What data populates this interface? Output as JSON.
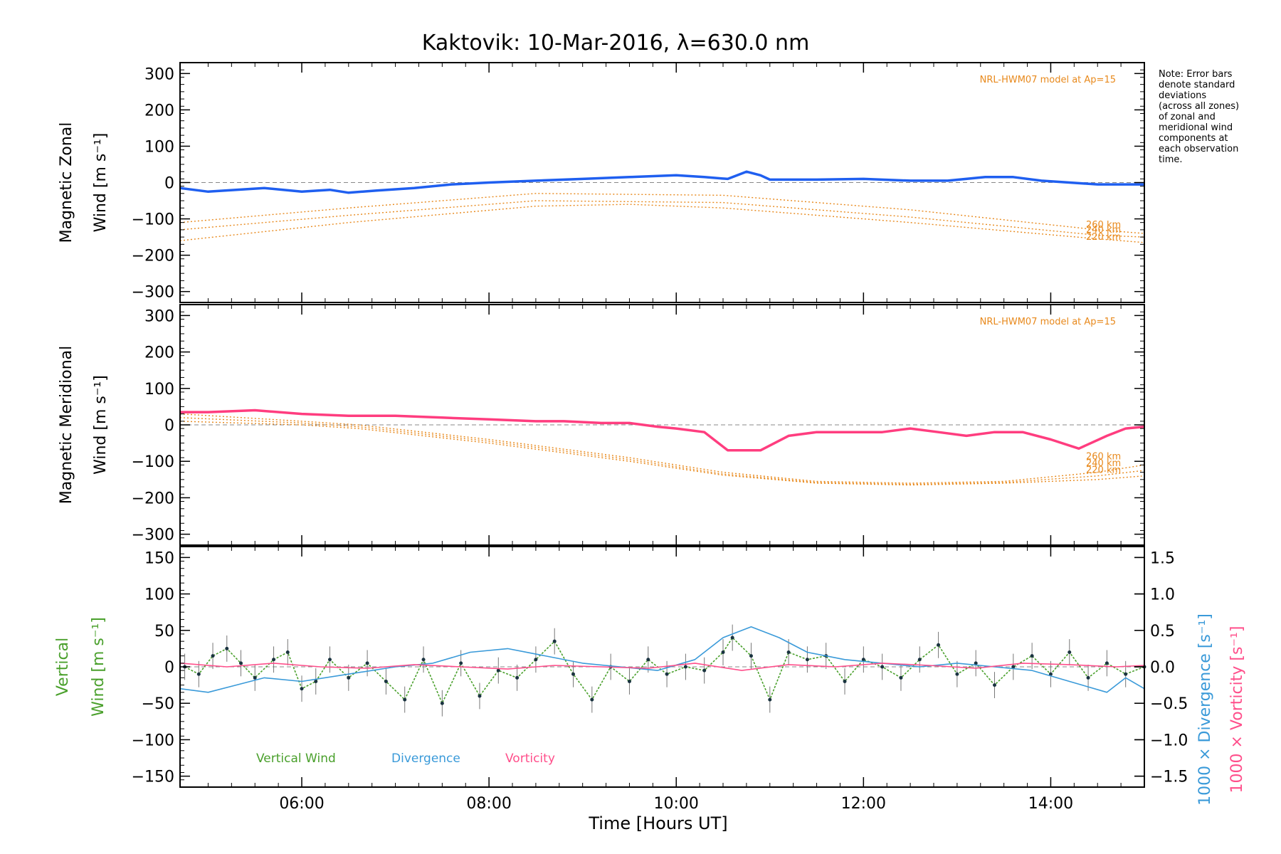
{
  "figure": {
    "title": "Kaktovik: 10-Mar-2016, λ=630.0 nm",
    "xlabel": "Time [Hours UT]",
    "note_lines": [
      "Note: Error bars",
      "denote standard",
      "deviations",
      "(across all zones)",
      "of zonal and",
      "meridional wind",
      "components at",
      "each observation",
      "time."
    ]
  },
  "colors": {
    "zonal_line": "#1f5ff0",
    "meridional_line": "#ff3d7f",
    "vertical": "#4aa02c",
    "divergence": "#3a9ad9",
    "vorticity": "#ff4f8b",
    "model": "#e8891c",
    "scatter": "#a59ee0"
  },
  "chart_data": [
    {
      "type": "line",
      "panel": "zonal",
      "ylabel_lines": [
        "Magnetic Zonal",
        "Wind [m s⁻¹]"
      ],
      "ylim": [
        -330,
        330
      ],
      "yticks": [
        300,
        200,
        100,
        0,
        -100,
        -200,
        -300
      ],
      "xlim": [
        4.7,
        15.0
      ],
      "xticks": [
        "06:00",
        "08:00",
        "10:00",
        "12:00",
        "14:00"
      ],
      "xtick_values": [
        6,
        8,
        10,
        12,
        14
      ],
      "model_label": "NRL-HWM07 model at Ap=15",
      "model_curves": [
        {
          "name": "260 km",
          "x": [
            4.7,
            6.5,
            8.5,
            10.5,
            12.5,
            14.5,
            15.0
          ],
          "y": [
            -110,
            -70,
            -30,
            -35,
            -75,
            -130,
            -140
          ]
        },
        {
          "name": "240 km",
          "x": [
            4.7,
            6.5,
            8.5,
            10.5,
            12.5,
            14.5,
            15.0
          ],
          "y": [
            -130,
            -90,
            -50,
            -55,
            -95,
            -145,
            -150
          ]
        },
        {
          "name": "220 km",
          "x": [
            4.7,
            6.5,
            8.5,
            9.5,
            10.5,
            12.5,
            14.5,
            15.0
          ],
          "y": [
            -160,
            -110,
            -65,
            -60,
            -70,
            -110,
            -155,
            -165
          ]
        }
      ],
      "series": [
        {
          "name": "",
          "x": [
            4.7,
            5.0,
            5.3,
            5.6,
            6.0,
            6.3,
            6.5,
            6.8,
            7.2,
            7.6,
            8.0,
            8.5,
            9.0,
            9.5,
            10.0,
            10.3,
            10.55,
            10.75,
            10.9,
            11.0,
            11.5,
            12.0,
            12.5,
            12.9,
            13.3,
            13.6,
            13.9,
            14.2,
            14.5,
            14.8,
            15.0
          ],
          "y": [
            -15,
            -25,
            -20,
            -15,
            -25,
            -20,
            -28,
            -22,
            -15,
            -5,
            0,
            5,
            10,
            15,
            20,
            15,
            10,
            30,
            20,
            8,
            8,
            10,
            5,
            5,
            15,
            15,
            5,
            0,
            -5,
            -5,
            -5
          ]
        }
      ]
    },
    {
      "type": "line",
      "panel": "meridional",
      "ylabel_lines": [
        "Magnetic Meridional",
        "Wind [m s⁻¹]"
      ],
      "ylim": [
        -330,
        330
      ],
      "yticks": [
        300,
        200,
        100,
        0,
        -100,
        -200,
        -300
      ],
      "xlim": [
        4.7,
        15.0
      ],
      "xticks": [
        "06:00",
        "08:00",
        "10:00",
        "12:00",
        "14:00"
      ],
      "xtick_values": [
        6,
        8,
        10,
        12,
        14
      ],
      "model_label": "NRL-HWM07 model at Ap=15",
      "model_curves": [
        {
          "name": "260 km",
          "x": [
            4.7,
            6.0,
            6.6,
            8.0,
            9.5,
            10.5,
            11.5,
            12.5,
            13.5,
            14.5,
            15.0
          ],
          "y": [
            30,
            10,
            0,
            -40,
            -90,
            -130,
            -155,
            -160,
            -155,
            -130,
            -110
          ]
        },
        {
          "name": "240 km",
          "x": [
            4.7,
            6.0,
            6.6,
            8.0,
            9.5,
            10.5,
            11.5,
            12.5,
            13.5,
            14.5,
            15.0
          ],
          "y": [
            20,
            5,
            -5,
            -45,
            -95,
            -135,
            -158,
            -163,
            -158,
            -140,
            -125
          ]
        },
        {
          "name": "220 km",
          "x": [
            4.7,
            6.0,
            6.6,
            8.0,
            9.5,
            10.5,
            11.5,
            12.5,
            13.5,
            14.5,
            15.0
          ],
          "y": [
            10,
            0,
            -10,
            -50,
            -100,
            -138,
            -160,
            -165,
            -160,
            -150,
            -140
          ]
        }
      ],
      "series": [
        {
          "name": "",
          "x": [
            4.7,
            5.0,
            5.5,
            6.0,
            6.5,
            7.0,
            7.5,
            8.0,
            8.5,
            8.8,
            9.2,
            9.5,
            9.8,
            10.0,
            10.3,
            10.55,
            10.9,
            11.2,
            11.5,
            11.8,
            12.2,
            12.5,
            12.8,
            13.1,
            13.4,
            13.7,
            14.0,
            14.3,
            14.6,
            14.8,
            15.0
          ],
          "y": [
            35,
            35,
            40,
            30,
            25,
            25,
            20,
            15,
            10,
            10,
            5,
            5,
            -5,
            -10,
            -20,
            -70,
            -70,
            -30,
            -20,
            -20,
            -20,
            -10,
            -20,
            -30,
            -20,
            -20,
            -40,
            -65,
            -30,
            -10,
            -5
          ]
        }
      ]
    },
    {
      "type": "line",
      "panel": "vertical",
      "ylabel_lines": [
        "Vertical",
        "Wind [m s⁻¹]"
      ],
      "ylim": [
        -165,
        165
      ],
      "yticks": [
        150,
        100,
        50,
        0,
        -50,
        -100,
        -150
      ],
      "y2ticks": [
        "1.5",
        "1.0",
        "0.5",
        "0.0",
        "-0.5",
        "-1.0",
        "-1.5"
      ],
      "y2tick_values": [
        1.5,
        1.0,
        0.5,
        0.0,
        -0.5,
        -1.0,
        -1.5
      ],
      "y2lim": [
        -1.65,
        1.65
      ],
      "y2label_div": "1000 × Divergence [s⁻¹]",
      "y2label_vor": "1000 × Vorticity [s⁻¹]",
      "xlim": [
        4.7,
        15.0
      ],
      "xticks": [
        "06:00",
        "08:00",
        "10:00",
        "12:00",
        "14:00"
      ],
      "xtick_values": [
        6,
        8,
        10,
        12,
        14
      ],
      "legend": [
        "Vertical Wind",
        "Divergence",
        "Vorticity"
      ],
      "series": [
        {
          "name": "Vertical Wind",
          "x": [
            4.75,
            4.9,
            5.05,
            5.2,
            5.35,
            5.5,
            5.7,
            5.85,
            6.0,
            6.15,
            6.3,
            6.5,
            6.7,
            6.9,
            7.1,
            7.3,
            7.5,
            7.7,
            7.9,
            8.1,
            8.3,
            8.5,
            8.7,
            8.9,
            9.1,
            9.3,
            9.5,
            9.7,
            9.9,
            10.1,
            10.3,
            10.5,
            10.6,
            10.8,
            11.0,
            11.2,
            11.4,
            11.6,
            11.8,
            12.0,
            12.2,
            12.4,
            12.6,
            12.8,
            13.0,
            13.2,
            13.4,
            13.6,
            13.8,
            14.0,
            14.2,
            14.4,
            14.6,
            14.8,
            15.0
          ],
          "y": [
            0,
            -10,
            15,
            25,
            5,
            -15,
            10,
            20,
            -30,
            -20,
            10,
            -15,
            5,
            -20,
            -45,
            10,
            -50,
            5,
            -40,
            -5,
            -15,
            10,
            35,
            -10,
            -45,
            0,
            -20,
            10,
            -10,
            0,
            -5,
            20,
            40,
            15,
            -45,
            20,
            10,
            15,
            -20,
            10,
            0,
            -15,
            10,
            30,
            -10,
            5,
            -25,
            0,
            15,
            -10,
            20,
            -15,
            5,
            -10,
            0
          ]
        },
        {
          "name": "Divergence",
          "x": [
            4.7,
            5.0,
            5.3,
            5.6,
            6.0,
            6.5,
            7.0,
            7.4,
            7.8,
            8.2,
            8.6,
            9.0,
            9.4,
            9.8,
            10.2,
            10.5,
            10.8,
            11.1,
            11.4,
            11.8,
            12.2,
            12.6,
            13.0,
            13.4,
            13.8,
            14.2,
            14.6,
            14.8,
            15.0
          ],
          "y": [
            -0.3,
            -0.35,
            -0.25,
            -0.15,
            -0.2,
            -0.1,
            0.0,
            0.05,
            0.2,
            0.25,
            0.15,
            0.05,
            0.0,
            -0.05,
            0.1,
            0.4,
            0.55,
            0.4,
            0.2,
            0.1,
            0.05,
            0.0,
            0.05,
            0.0,
            -0.05,
            -0.2,
            -0.35,
            -0.15,
            -0.3
          ]
        },
        {
          "name": "Vorticity",
          "x": [
            4.7,
            5.2,
            5.7,
            6.2,
            6.7,
            7.2,
            7.7,
            8.2,
            8.7,
            9.2,
            9.7,
            10.2,
            10.7,
            11.2,
            11.7,
            12.2,
            12.7,
            13.2,
            13.7,
            14.2,
            14.7,
            15.0
          ],
          "y": [
            0.05,
            0.0,
            0.05,
            0.0,
            -0.02,
            0.03,
            0.0,
            -0.03,
            0.02,
            0.0,
            -0.02,
            0.05,
            -0.05,
            0.03,
            0.0,
            0.05,
            0.02,
            -0.02,
            0.05,
            0.03,
            0.0,
            0.02
          ]
        }
      ]
    }
  ]
}
